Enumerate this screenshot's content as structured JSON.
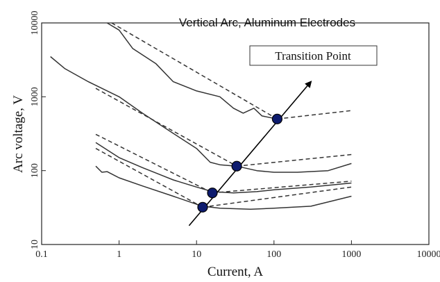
{
  "chart_data": {
    "type": "line",
    "title": "Vertical Arc, Aluminum Electrodes",
    "xlabel": "Current, A",
    "ylabel": "Arc voltage, V",
    "x_scale": "log",
    "y_scale": "log",
    "xlim": [
      0.1,
      10000
    ],
    "ylim": [
      10,
      10000
    ],
    "x_ticks": [
      "0.1",
      "1",
      "10",
      "100",
      "1000",
      "10000"
    ],
    "y_ticks": [
      "10",
      "100",
      "1000",
      "10000"
    ],
    "grid": false,
    "annotation": "Transition Point",
    "colors": {
      "lines": "#333333",
      "points": "#0d1b6e",
      "point_edge": "#000000"
    },
    "series": [
      {
        "style": "solid",
        "points": [
          [
            0.7,
            10000
          ],
          [
            1.0,
            8000
          ],
          [
            1.5,
            4500
          ],
          [
            3.0,
            2800
          ],
          [
            5.0,
            1600
          ],
          [
            10.0,
            1200
          ],
          [
            20.0,
            1000
          ],
          [
            30.0,
            700
          ],
          [
            40.0,
            600
          ],
          [
            55.0,
            700
          ],
          [
            70.0,
            550
          ],
          [
            110.0,
            500
          ]
        ]
      },
      {
        "style": "dashed",
        "points": [
          [
            0.8,
            10000
          ],
          [
            110.0,
            500
          ]
        ]
      },
      {
        "style": "dashed",
        "points": [
          [
            110.0,
            500
          ],
          [
            1000.0,
            650
          ]
        ]
      },
      {
        "style": "solid",
        "points": [
          [
            0.13,
            3500
          ],
          [
            0.2,
            2400
          ],
          [
            0.4,
            1600
          ],
          [
            1.0,
            1000
          ],
          [
            2.0,
            600
          ],
          [
            5.0,
            320
          ],
          [
            10.0,
            200
          ],
          [
            15.0,
            130
          ],
          [
            20.0,
            120
          ],
          [
            33.0,
            115
          ],
          [
            60.0,
            100
          ],
          [
            100.0,
            95
          ],
          [
            200.0,
            95
          ],
          [
            500.0,
            100
          ],
          [
            1000.0,
            125
          ]
        ]
      },
      {
        "style": "dashed",
        "points": [
          [
            0.5,
            1300
          ],
          [
            33.0,
            115
          ]
        ]
      },
      {
        "style": "dashed",
        "points": [
          [
            33.0,
            115
          ],
          [
            1000.0,
            165
          ]
        ]
      },
      {
        "style": "solid",
        "points": [
          [
            0.5,
            240
          ],
          [
            1.0,
            150
          ],
          [
            2.0,
            110
          ],
          [
            5.0,
            75
          ],
          [
            10.0,
            60
          ],
          [
            16.0,
            52
          ],
          [
            30.0,
            50
          ],
          [
            60.0,
            52
          ],
          [
            100.0,
            55
          ],
          [
            300.0,
            60
          ],
          [
            1000.0,
            68
          ]
        ]
      },
      {
        "style": "dashed",
        "points": [
          [
            0.5,
            310
          ],
          [
            16.0,
            50
          ]
        ]
      },
      {
        "style": "dashed",
        "points": [
          [
            16.0,
            50
          ],
          [
            1000.0,
            72
          ]
        ]
      },
      {
        "style": "solid",
        "points": [
          [
            0.5,
            115
          ],
          [
            0.6,
            95
          ],
          [
            0.7,
            97
          ],
          [
            1.0,
            80
          ],
          [
            2.0,
            62
          ],
          [
            5.0,
            45
          ],
          [
            10.0,
            35
          ],
          [
            12.0,
            33
          ],
          [
            20.0,
            31
          ],
          [
            50.0,
            30
          ],
          [
            100.0,
            31
          ],
          [
            300.0,
            33
          ],
          [
            1000.0,
            45
          ]
        ]
      },
      {
        "style": "dashed",
        "points": [
          [
            0.5,
            200
          ],
          [
            12.0,
            32
          ]
        ]
      },
      {
        "style": "dashed",
        "points": [
          [
            12.0,
            32
          ],
          [
            1000.0,
            60
          ]
        ]
      },
      {
        "style": "arrow",
        "points": [
          [
            8.0,
            18
          ],
          [
            300.0,
            1600
          ]
        ]
      }
    ],
    "transition_points": [
      {
        "x": 110.0,
        "y": 500
      },
      {
        "x": 33.0,
        "y": 115
      },
      {
        "x": 16.0,
        "y": 50
      },
      {
        "x": 12.0,
        "y": 32
      }
    ]
  }
}
